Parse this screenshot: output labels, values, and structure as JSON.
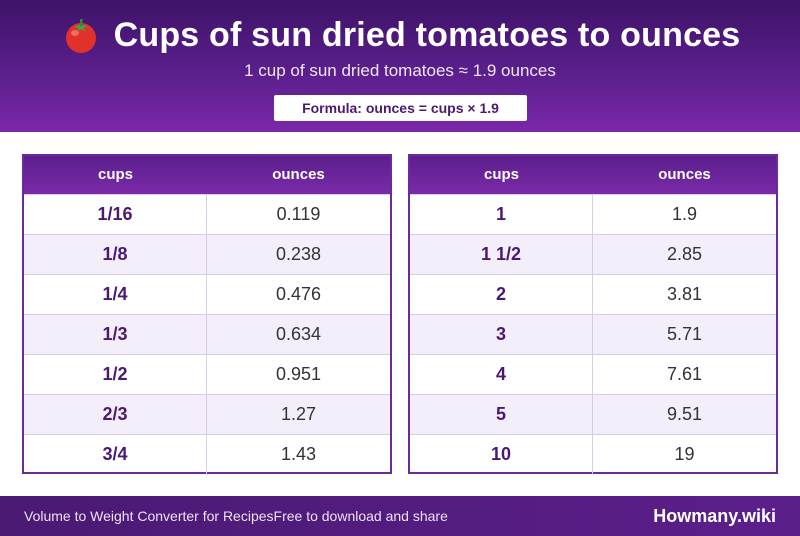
{
  "header": {
    "title": "Cups of sun dried tomatoes to ounces",
    "icon": "tomato-icon",
    "subtitle": "1 cup of sun dried tomatoes ≈ 1.9 ounces",
    "formula": "Formula: ounces = cups × 1.9"
  },
  "tables": {
    "left": {
      "headers": [
        "cups",
        "ounces"
      ],
      "rows": [
        [
          "1/16",
          "0.119"
        ],
        [
          "1/8",
          "0.238"
        ],
        [
          "1/4",
          "0.476"
        ],
        [
          "1/3",
          "0.634"
        ],
        [
          "1/2",
          "0.951"
        ],
        [
          "2/3",
          "1.27"
        ],
        [
          "3/4",
          "1.43"
        ]
      ]
    },
    "right": {
      "headers": [
        "cups",
        "ounces"
      ],
      "rows": [
        [
          "1",
          "1.9"
        ],
        [
          "1 1/2",
          "2.85"
        ],
        [
          "2",
          "3.81"
        ],
        [
          "3",
          "5.71"
        ],
        [
          "4",
          "7.61"
        ],
        [
          "5",
          "9.51"
        ],
        [
          "10",
          "19"
        ]
      ]
    }
  },
  "footer": {
    "left_text": "Volume to Weight Converter for Recipes",
    "middle_text": "Free to download and share",
    "brand": "Howmany.wiki"
  },
  "colors": {
    "header_bg": "#5a1f8c",
    "accent": "#4a1a73",
    "row_alt": "#f4eefb"
  }
}
